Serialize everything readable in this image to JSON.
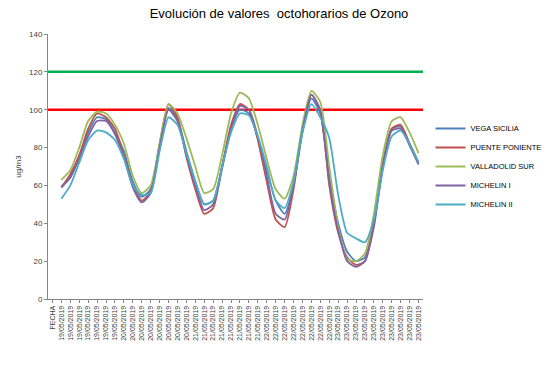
{
  "chart_data": {
    "type": "line",
    "title": "Evolución de valores  octohorarios de Ozono",
    "y_label": "ug/m3",
    "categories": [
      "FECHA",
      "19/05/2019",
      "19/05/2019",
      "19/05/2019",
      "19/05/2019",
      "19/05/2019",
      "19/05/2019",
      "19/05/2019",
      "20/05/2019",
      "20/05/2019",
      "20/05/2019",
      "20/05/2019",
      "20/05/2019",
      "20/05/2019",
      "20/05/2019",
      "20/05/2019",
      "21/05/2019",
      "21/05/2019",
      "21/05/2019",
      "21/05/2019",
      "21/05/2019",
      "21/05/2019",
      "21/05/2019",
      "21/05/2019",
      "22/05/2019",
      "22/05/2019",
      "22/05/2019",
      "22/05/2019",
      "22/05/2019",
      "22/05/2019",
      "22/05/2019",
      "22/05/2019",
      "23/05/2019",
      "23/05/2019",
      "23/05/2019",
      "23/05/2019",
      "23/05/2019",
      "23/05/2019",
      "23/05/2019",
      "23/05/2019",
      "23/05/2019",
      "23/05/2019"
    ],
    "series": [
      {
        "name": "VEGA SICILIA",
        "color": "#4F81BD",
        "values": [
          null,
          59,
          65,
          75,
          88,
          96,
          95,
          88,
          78,
          62,
          54,
          58,
          80,
          101,
          95,
          78,
          62,
          50,
          52,
          70,
          90,
          100,
          98,
          85,
          68,
          52,
          45,
          60,
          88,
          106,
          98,
          65,
          40,
          25,
          20,
          22,
          40,
          70,
          90,
          91,
          82,
          72
        ]
      },
      {
        "name": "PUENTE PONIENTE",
        "color": "#C0504D",
        "values": [
          null,
          59,
          66,
          76,
          90,
          98,
          96,
          90,
          76,
          60,
          52,
          57,
          82,
          103,
          96,
          75,
          58,
          45,
          48,
          70,
          92,
          103,
          100,
          84,
          62,
          42,
          38,
          58,
          90,
          108,
          100,
          60,
          35,
          22,
          18,
          20,
          40,
          72,
          90,
          92,
          82,
          72
        ]
      },
      {
        "name": "VALLADOLID SUR",
        "color": "#9BBB59",
        "values": [
          null,
          63,
          68,
          80,
          94,
          99,
          98,
          92,
          82,
          65,
          56,
          60,
          82,
          103,
          98,
          85,
          70,
          56,
          58,
          76,
          98,
          109,
          106,
          92,
          74,
          58,
          53,
          65,
          92,
          110,
          104,
          70,
          38,
          21,
          20,
          24,
          45,
          76,
          94,
          96,
          88,
          77
        ]
      },
      {
        "name": "MICHELIN I",
        "color": "#8064A2",
        "values": [
          null,
          59,
          64,
          74,
          86,
          94,
          94,
          87,
          75,
          59,
          51,
          56,
          80,
          100,
          94,
          76,
          60,
          47,
          50,
          69,
          90,
          102,
          100,
          86,
          65,
          45,
          42,
          60,
          89,
          108,
          99,
          62,
          36,
          20,
          17,
          20,
          38,
          70,
          89,
          90,
          81,
          71
        ]
      },
      {
        "name": "MICHELIN II",
        "color": "#4BACC6",
        "values": [
          null,
          53,
          60,
          72,
          84,
          89,
          88,
          84,
          74,
          60,
          55,
          56,
          78,
          96,
          92,
          77,
          62,
          50,
          52,
          70,
          88,
          98,
          97,
          86,
          70,
          52,
          48,
          62,
          88,
          103,
          96,
          85,
          55,
          35,
          32,
          30,
          42,
          68,
          86,
          89,
          82,
          72
        ]
      }
    ],
    "reference_lines": [
      {
        "value": 100,
        "color": "#FF0000"
      },
      {
        "value": 120,
        "color": "#00B050"
      }
    ],
    "ylim": [
      0,
      140
    ],
    "yticks": [
      0,
      20,
      40,
      60,
      80,
      100,
      120,
      140
    ],
    "grid": false,
    "legend": "right"
  }
}
